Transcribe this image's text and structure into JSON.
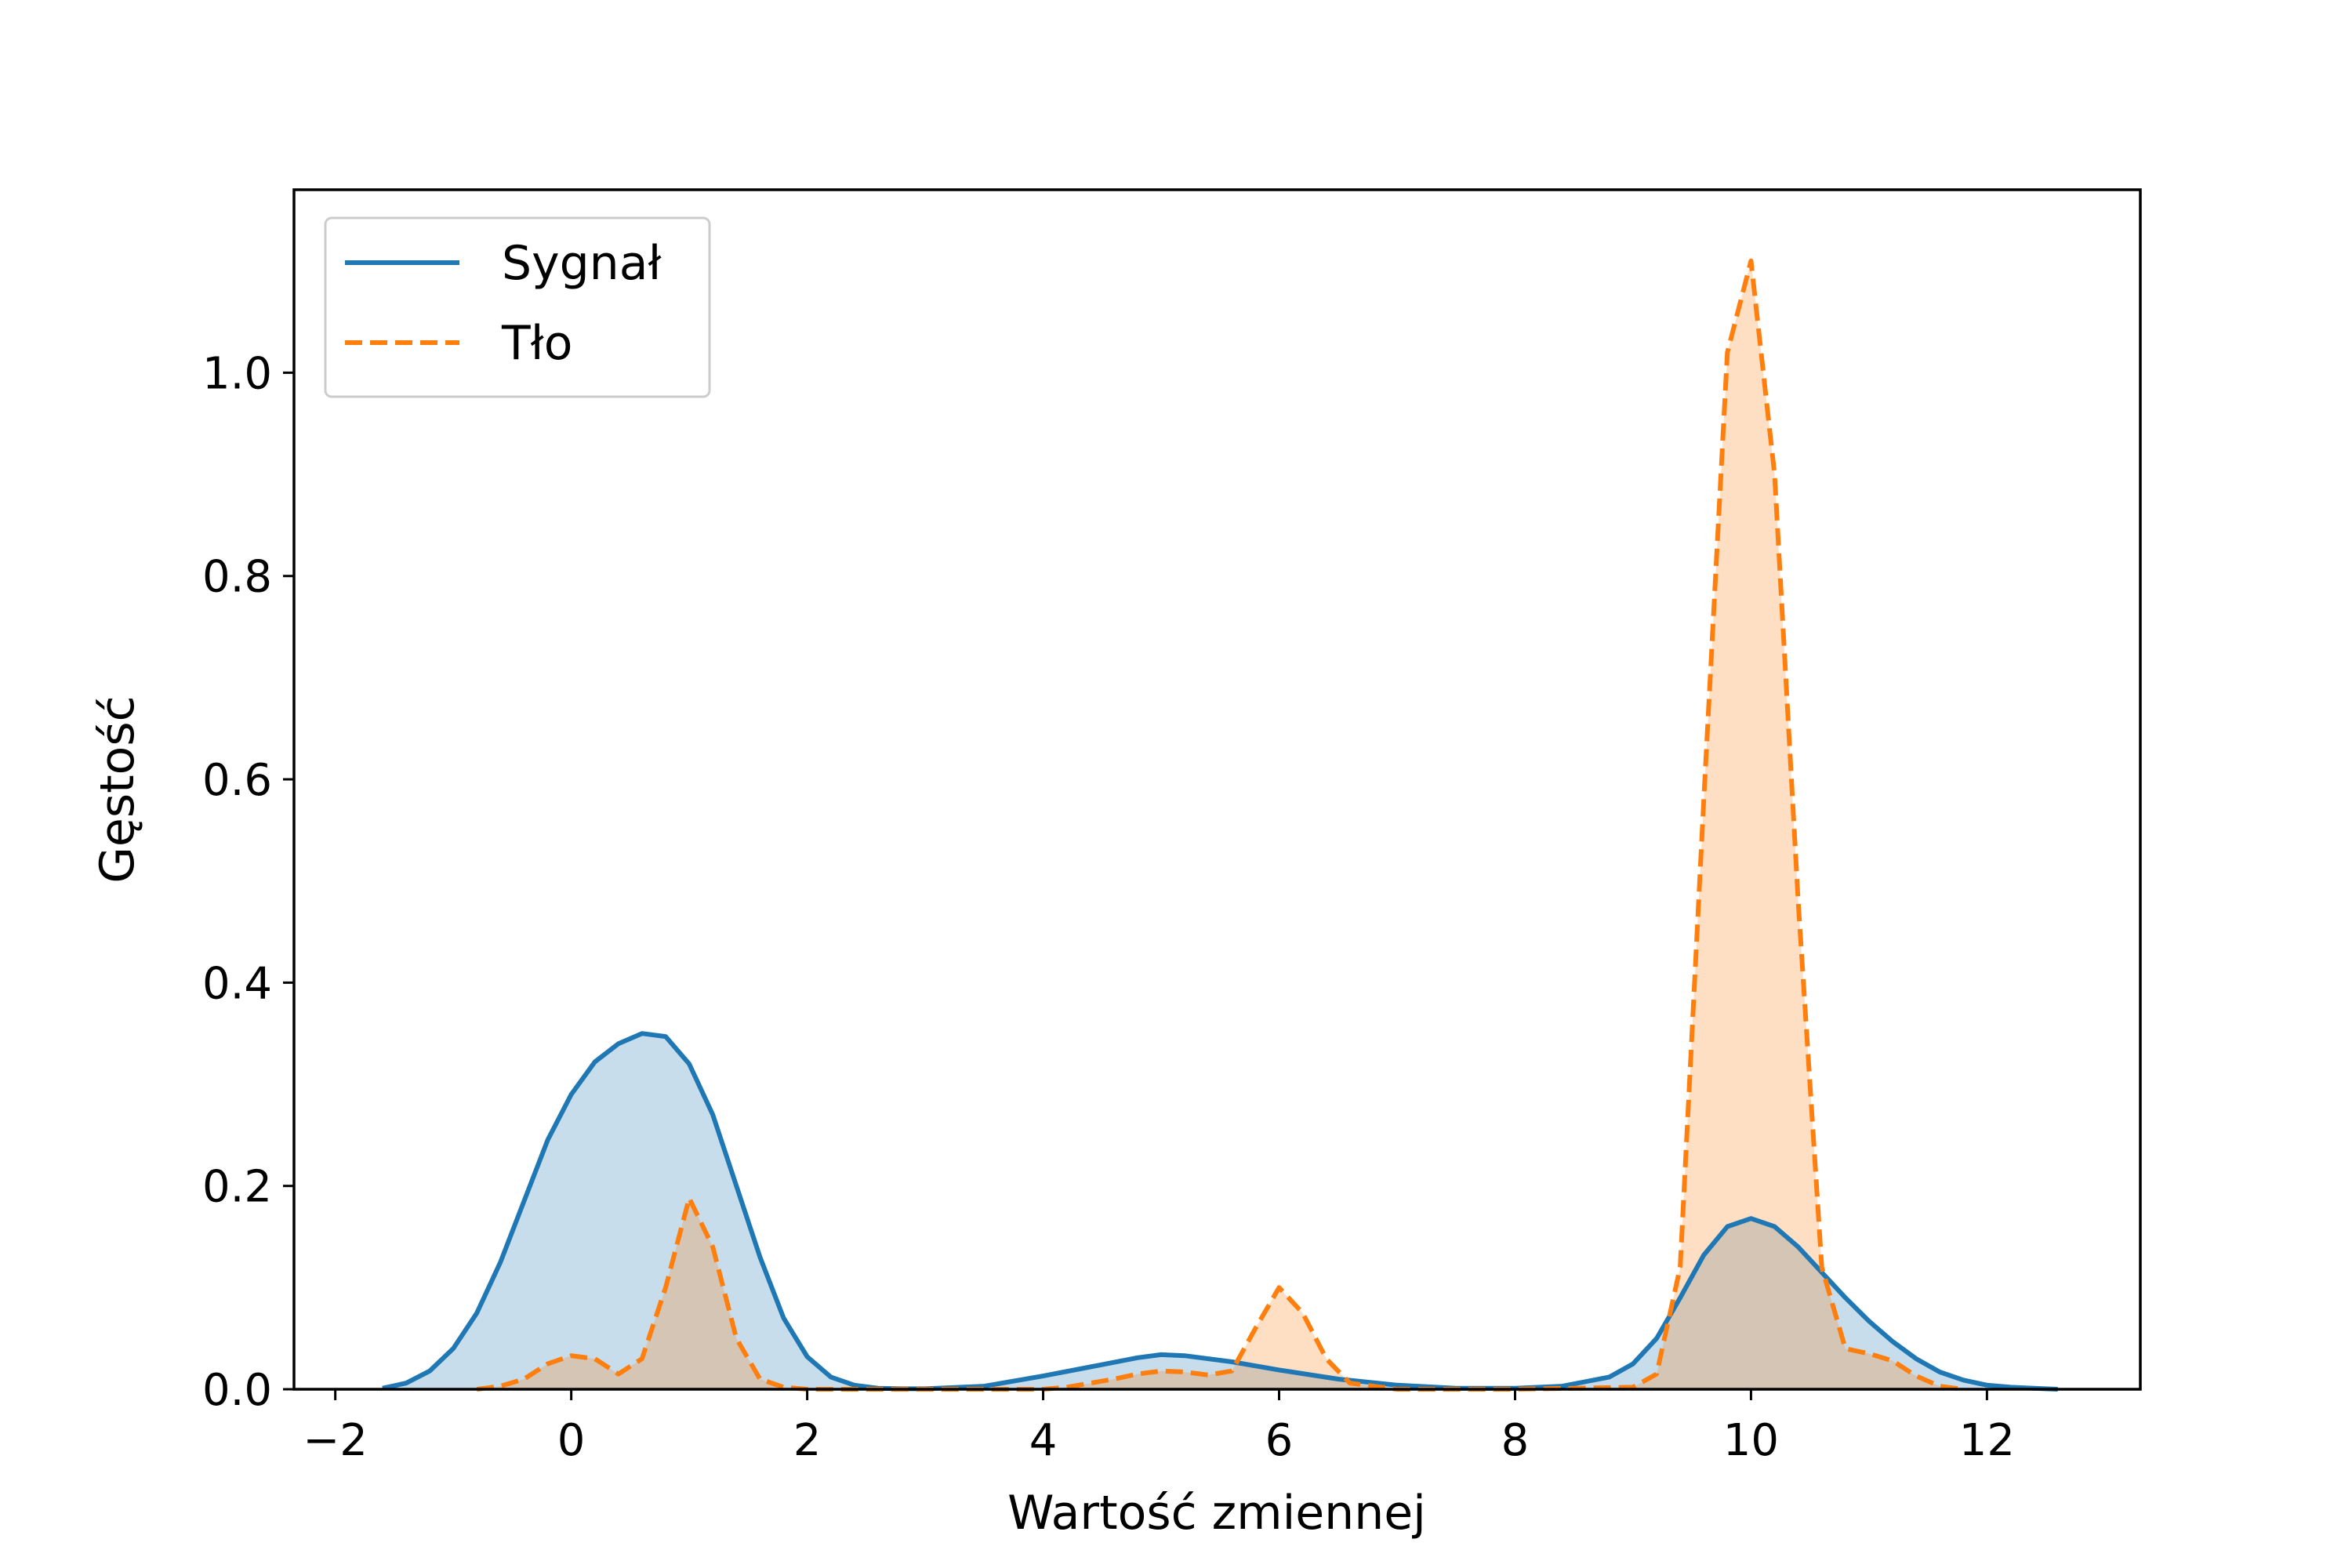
{
  "colors": {
    "signal": "#1f77b4",
    "background": "#ff7f0e",
    "signal_fill": "#c6d9ec",
    "background_fill": "#ffd9b7",
    "overlap_fill": "#d2c0b0"
  },
  "chart_data": {
    "type": "area",
    "title": "",
    "xlabel": "Wartość zmiennej",
    "ylabel": "Gęstość",
    "xlim": [
      -2.35,
      13.3
    ],
    "ylim": [
      0,
      1.18
    ],
    "xticks": [
      -2,
      0,
      2,
      4,
      6,
      8,
      10,
      12
    ],
    "xtick_labels": [
      "−2",
      "0",
      "2",
      "4",
      "6",
      "8",
      "10",
      "12"
    ],
    "yticks": [
      0.0,
      0.2,
      0.4,
      0.6,
      0.8,
      1.0
    ],
    "ytick_labels": [
      "0.0",
      "0.2",
      "0.4",
      "0.6",
      "0.8",
      "1.0"
    ],
    "grid": false,
    "legend_position": "upper-left",
    "series": [
      {
        "name": "Sygnał",
        "line_style": "solid",
        "fill": true,
        "x": [
          -1.6,
          -1.4,
          -1.2,
          -1.0,
          -0.8,
          -0.6,
          -0.4,
          -0.2,
          0.0,
          0.2,
          0.4,
          0.6,
          0.8,
          1.0,
          1.2,
          1.4,
          1.6,
          1.8,
          2.0,
          2.2,
          2.4,
          2.6,
          2.8,
          3.0,
          3.5,
          4.0,
          4.4,
          4.8,
          5.0,
          5.2,
          5.6,
          6.0,
          6.5,
          7.0,
          7.5,
          8.0,
          8.4,
          8.8,
          9.0,
          9.2,
          9.4,
          9.6,
          9.8,
          10.0,
          10.2,
          10.4,
          10.6,
          10.8,
          11.0,
          11.2,
          11.4,
          11.6,
          11.8,
          12.0,
          12.2,
          12.4,
          12.6
        ],
        "y": [
          0.001,
          0.006,
          0.018,
          0.04,
          0.075,
          0.125,
          0.185,
          0.245,
          0.29,
          0.322,
          0.34,
          0.35,
          0.347,
          0.32,
          0.27,
          0.2,
          0.13,
          0.07,
          0.032,
          0.012,
          0.004,
          0.001,
          0.0005,
          0.0005,
          0.003,
          0.013,
          0.022,
          0.031,
          0.034,
          0.033,
          0.027,
          0.019,
          0.01,
          0.004,
          0.001,
          0.001,
          0.003,
          0.012,
          0.025,
          0.05,
          0.09,
          0.132,
          0.16,
          0.168,
          0.16,
          0.14,
          0.115,
          0.09,
          0.067,
          0.047,
          0.03,
          0.017,
          0.009,
          0.004,
          0.002,
          0.001,
          0.0
        ]
      },
      {
        "name": "Tło",
        "line_style": "dashed",
        "fill": true,
        "x": [
          -0.8,
          -0.6,
          -0.4,
          -0.2,
          0.0,
          0.2,
          0.4,
          0.6,
          0.8,
          1.0,
          1.2,
          1.4,
          1.6,
          1.8,
          2.0,
          3.0,
          4.0,
          4.2,
          4.4,
          4.6,
          4.8,
          5.0,
          5.2,
          5.4,
          5.6,
          5.8,
          6.0,
          6.2,
          6.4,
          6.6,
          7.0,
          8.0,
          9.0,
          9.2,
          9.4,
          9.6,
          9.8,
          10.0,
          10.2,
          10.4,
          10.6,
          10.8,
          11.0,
          11.2,
          11.4,
          11.6,
          11.8
        ],
        "y": [
          0.0,
          0.003,
          0.01,
          0.025,
          0.033,
          0.03,
          0.015,
          0.03,
          0.1,
          0.188,
          0.14,
          0.05,
          0.01,
          0.002,
          0.0,
          0.0,
          0.0,
          0.002,
          0.006,
          0.01,
          0.015,
          0.018,
          0.017,
          0.014,
          0.018,
          0.06,
          0.1,
          0.075,
          0.03,
          0.006,
          0.0,
          0.0,
          0.002,
          0.015,
          0.12,
          0.58,
          1.02,
          1.11,
          0.9,
          0.48,
          0.12,
          0.04,
          0.035,
          0.028,
          0.013,
          0.003,
          0.0
        ]
      }
    ]
  }
}
